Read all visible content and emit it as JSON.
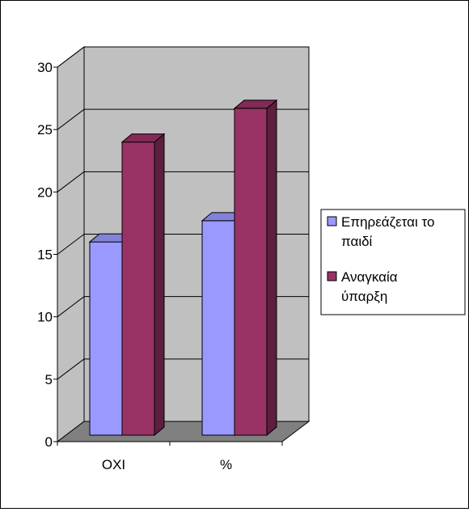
{
  "chart_data": {
    "type": "bar",
    "style": "3d-clustered-column",
    "categories": [
      "ΟΧΙ",
      "%"
    ],
    "series": [
      {
        "name": "Επηρεάζεται το παιδί",
        "values": [
          16,
          17.7
        ],
        "color": "#9999ff"
      },
      {
        "name": "Αναγκαία ύπαρξη",
        "values": [
          24,
          26.7
        ],
        "color": "#993366"
      }
    ],
    "ylim": [
      0,
      30
    ],
    "yticks": [
      0,
      5,
      10,
      15,
      20,
      25,
      30
    ],
    "grid": true,
    "legend_position": "right",
    "colors": {
      "wall": "#c0c0c0",
      "floor": "#808080",
      "gridline": "#000000"
    },
    "legend": [
      {
        "series": 0,
        "lines": [
          "Επηρεάζεται το",
          "παιδί"
        ]
      },
      {
        "series": 1,
        "lines": [
          "Αναγκαία",
          "ύπαρξη"
        ]
      }
    ]
  }
}
